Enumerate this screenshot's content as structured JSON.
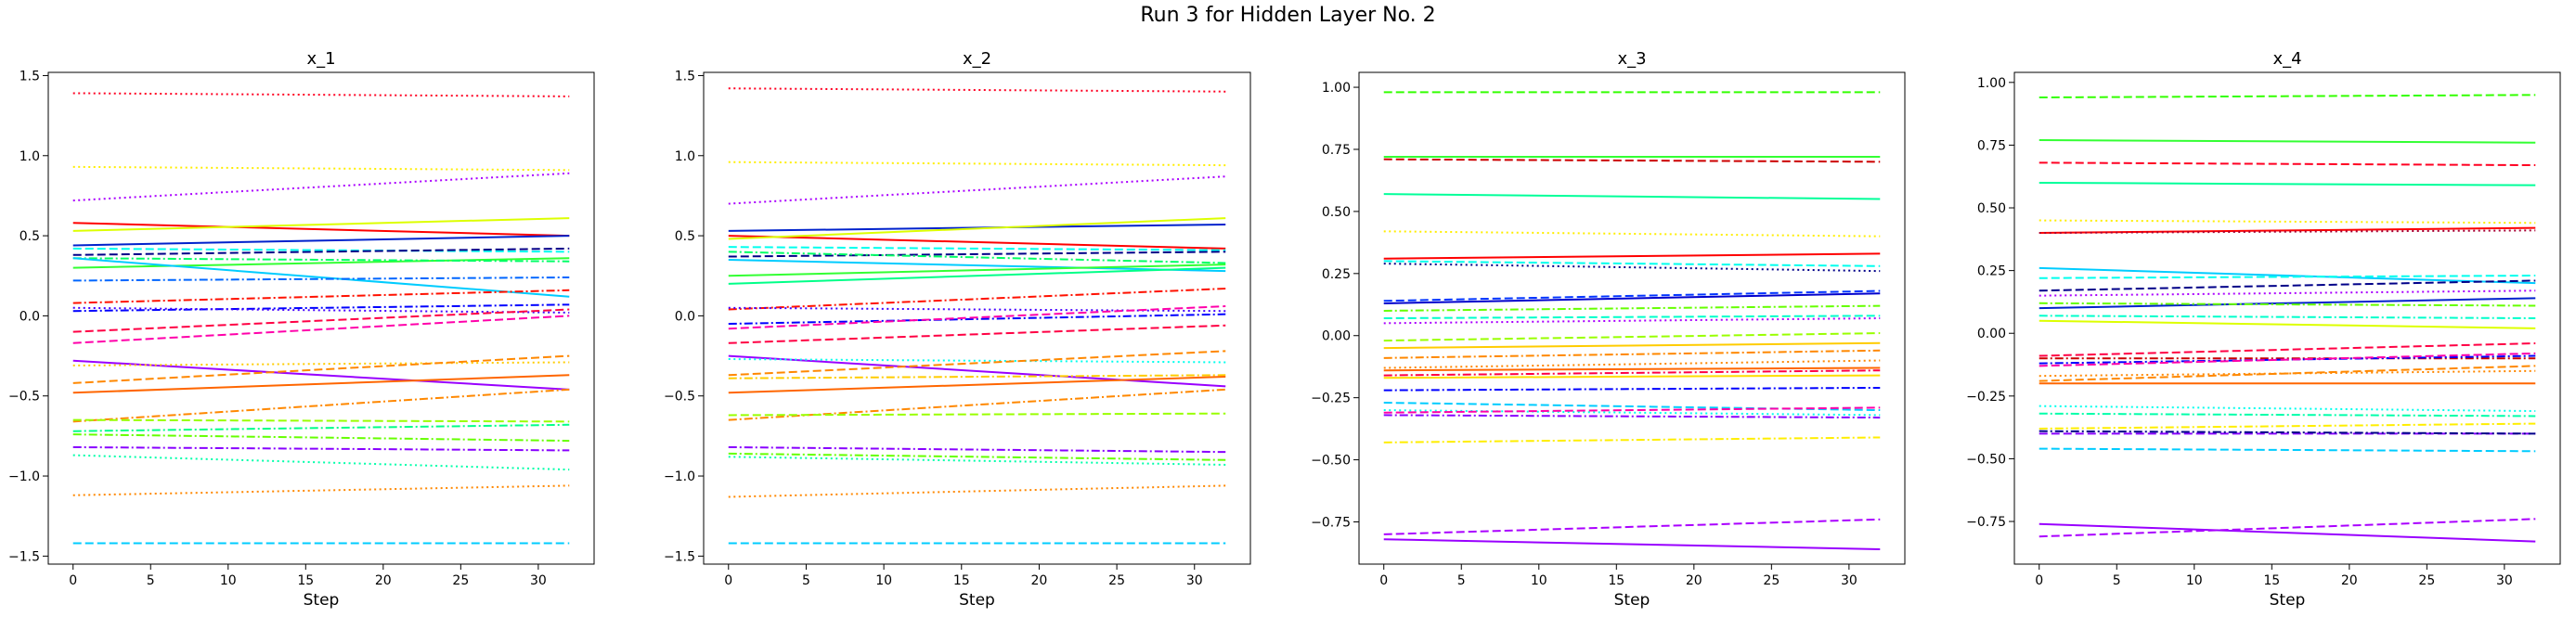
{
  "figure": {
    "title": "Run 3 for Hidden Layer No. 2"
  },
  "chart_data": [
    {
      "type": "line",
      "title": "x_1",
      "xlabel": "Step",
      "ylabel": "",
      "xlim": [
        -1.6,
        33.6
      ],
      "ylim": [
        -1.55,
        1.52
      ],
      "x_ticks": [
        0,
        5,
        10,
        15,
        20,
        25,
        30
      ],
      "y_ticks": [
        -1.5,
        -1.0,
        -0.5,
        0.0,
        0.5,
        1.0,
        1.5
      ],
      "y_tick_labels": [
        "−1.5",
        "−1.0",
        "−0.5",
        "0.0",
        "0.5",
        "1.0",
        "1.5"
      ],
      "x_range": [
        0,
        32
      ],
      "grid": false,
      "series": [
        {
          "color": "#ff0022",
          "style": "dotted",
          "start": 1.39,
          "end": 1.37
        },
        {
          "color": "#ffee00",
          "style": "dotted",
          "start": 0.93,
          "end": 0.91
        },
        {
          "color": "#aa00ff",
          "style": "dotted",
          "start": 0.72,
          "end": 0.89
        },
        {
          "color": "#ff0000",
          "style": "solid",
          "start": 0.58,
          "end": 0.5
        },
        {
          "color": "#ddff00",
          "style": "solid",
          "start": 0.53,
          "end": 0.61
        },
        {
          "color": "#0022cc",
          "style": "solid",
          "start": 0.44,
          "end": 0.5
        },
        {
          "color": "#00ffee",
          "style": "dashed",
          "start": 0.42,
          "end": 0.4
        },
        {
          "color": "#000088",
          "style": "dashed",
          "start": 0.38,
          "end": 0.42
        },
        {
          "color": "#33ff33",
          "style": "solid",
          "start": 0.3,
          "end": 0.36
        },
        {
          "color": "#00ff66",
          "style": "dashdot",
          "start": 0.36,
          "end": 0.34
        },
        {
          "color": "#00ccff",
          "style": "solid",
          "start": 0.36,
          "end": 0.12
        },
        {
          "color": "#0066ff",
          "style": "dashdot",
          "start": 0.22,
          "end": 0.24
        },
        {
          "color": "#ff1100",
          "style": "dashdot",
          "start": 0.08,
          "end": 0.16
        },
        {
          "color": "#0000ff",
          "style": "dashdot",
          "start": 0.03,
          "end": 0.07
        },
        {
          "color": "#4400ff",
          "style": "dotted",
          "start": 0.05,
          "end": 0.02
        },
        {
          "color": "#ff0044",
          "style": "dashed",
          "start": -0.1,
          "end": 0.04
        },
        {
          "color": "#ff00aa",
          "style": "dashed",
          "start": -0.17,
          "end": 0.0
        },
        {
          "color": "#9900ff",
          "style": "solid",
          "start": -0.28,
          "end": -0.46
        },
        {
          "color": "#ffcc00",
          "style": "dotted",
          "start": -0.31,
          "end": -0.29
        },
        {
          "color": "#ff8800",
          "style": "dashed",
          "start": -0.42,
          "end": -0.25
        },
        {
          "color": "#ff6600",
          "style": "solid",
          "start": -0.48,
          "end": -0.37
        },
        {
          "color": "#ff8800",
          "style": "dashdot",
          "start": -0.66,
          "end": -0.46
        },
        {
          "color": "#99ff00",
          "style": "dashed",
          "start": -0.65,
          "end": -0.66
        },
        {
          "color": "#00ff88",
          "style": "dashdot",
          "start": -0.72,
          "end": -0.68
        },
        {
          "color": "#66ff00",
          "style": "dashdot",
          "start": -0.74,
          "end": -0.78
        },
        {
          "color": "#8800ff",
          "style": "dashdot",
          "start": -0.82,
          "end": -0.84
        },
        {
          "color": "#00ffaa",
          "style": "dotted",
          "start": -0.87,
          "end": -0.96
        },
        {
          "color": "#ff8800",
          "style": "dotted",
          "start": -1.12,
          "end": -1.06
        },
        {
          "color": "#00ccff",
          "style": "dashed",
          "start": -1.42,
          "end": -1.42
        }
      ]
    },
    {
      "type": "line",
      "title": "x_2",
      "xlabel": "Step",
      "ylabel": "",
      "xlim": [
        -1.6,
        33.6
      ],
      "ylim": [
        -1.55,
        1.52
      ],
      "x_ticks": [
        0,
        5,
        10,
        15,
        20,
        25,
        30
      ],
      "y_ticks": [
        -1.5,
        -1.0,
        -0.5,
        0.0,
        0.5,
        1.0,
        1.5
      ],
      "y_tick_labels": [
        "−1.5",
        "−1.0",
        "−0.5",
        "0.0",
        "0.5",
        "1.0",
        "1.5"
      ],
      "x_range": [
        0,
        32
      ],
      "grid": false,
      "series": [
        {
          "color": "#ff0022",
          "style": "dotted",
          "start": 1.42,
          "end": 1.4
        },
        {
          "color": "#ffee00",
          "style": "dotted",
          "start": 0.96,
          "end": 0.94
        },
        {
          "color": "#aa00ff",
          "style": "dotted",
          "start": 0.7,
          "end": 0.87
        },
        {
          "color": "#0022cc",
          "style": "solid",
          "start": 0.53,
          "end": 0.57
        },
        {
          "color": "#ff0000",
          "style": "solid",
          "start": 0.5,
          "end": 0.42
        },
        {
          "color": "#ddff00",
          "style": "solid",
          "start": 0.48,
          "end": 0.61
        },
        {
          "color": "#00ffee",
          "style": "dashed",
          "start": 0.43,
          "end": 0.41
        },
        {
          "color": "#000088",
          "style": "dashed",
          "start": 0.37,
          "end": 0.4
        },
        {
          "color": "#00ff66",
          "style": "dashdot",
          "start": 0.4,
          "end": 0.33
        },
        {
          "color": "#00ccff",
          "style": "solid",
          "start": 0.35,
          "end": 0.28
        },
        {
          "color": "#33ff33",
          "style": "solid",
          "start": 0.25,
          "end": 0.32
        },
        {
          "color": "#00ff88",
          "style": "solid",
          "start": 0.2,
          "end": 0.3
        },
        {
          "color": "#ff1100",
          "style": "dashdot",
          "start": 0.04,
          "end": 0.17
        },
        {
          "color": "#4400ff",
          "style": "dotted",
          "start": 0.05,
          "end": 0.03
        },
        {
          "color": "#0000ff",
          "style": "dashdot",
          "start": -0.05,
          "end": 0.01
        },
        {
          "color": "#ff00aa",
          "style": "dashed",
          "start": -0.08,
          "end": 0.06
        },
        {
          "color": "#ff0044",
          "style": "dashed",
          "start": -0.17,
          "end": -0.06
        },
        {
          "color": "#9900ff",
          "style": "solid",
          "start": -0.25,
          "end": -0.44
        },
        {
          "color": "#00ffee",
          "style": "dotted",
          "start": -0.27,
          "end": -0.29
        },
        {
          "color": "#ff8800",
          "style": "dashed",
          "start": -0.37,
          "end": -0.22
        },
        {
          "color": "#ffcc00",
          "style": "dashdot",
          "start": -0.39,
          "end": -0.37
        },
        {
          "color": "#ff6600",
          "style": "solid",
          "start": -0.48,
          "end": -0.38
        },
        {
          "color": "#ff8800",
          "style": "dashdot",
          "start": -0.65,
          "end": -0.46
        },
        {
          "color": "#99ff00",
          "style": "dashed",
          "start": -0.62,
          "end": -0.61
        },
        {
          "color": "#8800ff",
          "style": "dashdot",
          "start": -0.82,
          "end": -0.85
        },
        {
          "color": "#66ff00",
          "style": "dashdot",
          "start": -0.86,
          "end": -0.9
        },
        {
          "color": "#00ffaa",
          "style": "dotted",
          "start": -0.88,
          "end": -0.93
        },
        {
          "color": "#ff8800",
          "style": "dotted",
          "start": -1.13,
          "end": -1.06
        },
        {
          "color": "#00ccff",
          "style": "dashed",
          "start": -1.42,
          "end": -1.42
        }
      ]
    },
    {
      "type": "line",
      "title": "x_3",
      "xlabel": "Step",
      "ylabel": "",
      "xlim": [
        -1.6,
        33.6
      ],
      "ylim": [
        -0.92,
        1.06
      ],
      "x_ticks": [
        0,
        5,
        10,
        15,
        20,
        25,
        30
      ],
      "y_ticks": [
        -0.75,
        -0.5,
        -0.25,
        0.0,
        0.25,
        0.5,
        0.75,
        1.0
      ],
      "y_tick_labels": [
        "−0.75",
        "−0.50",
        "−0.25",
        "0.00",
        "0.25",
        "0.50",
        "0.75",
        "1.00"
      ],
      "x_range": [
        0,
        32
      ],
      "grid": false,
      "series": [
        {
          "color": "#33ff00",
          "style": "dashed",
          "start": 0.98,
          "end": 0.98
        },
        {
          "color": "#33ff33",
          "style": "solid",
          "start": 0.72,
          "end": 0.72
        },
        {
          "color": "#cc0000",
          "style": "dashed",
          "start": 0.71,
          "end": 0.7
        },
        {
          "color": "#00ff99",
          "style": "solid",
          "start": 0.57,
          "end": 0.55
        },
        {
          "color": "#ffee00",
          "style": "dotted",
          "start": 0.42,
          "end": 0.4
        },
        {
          "color": "#ff0000",
          "style": "solid",
          "start": 0.31,
          "end": 0.33
        },
        {
          "color": "#00ffee",
          "style": "dashed",
          "start": 0.3,
          "end": 0.28
        },
        {
          "color": "#000088",
          "style": "dotted",
          "start": 0.29,
          "end": 0.26
        },
        {
          "color": "#0000cc",
          "style": "solid",
          "start": 0.13,
          "end": 0.17
        },
        {
          "color": "#0033ff",
          "style": "dashed",
          "start": 0.14,
          "end": 0.18
        },
        {
          "color": "#66ff00",
          "style": "dashdot",
          "start": 0.1,
          "end": 0.12
        },
        {
          "color": "#00ffcc",
          "style": "dashed",
          "start": 0.07,
          "end": 0.08
        },
        {
          "color": "#aa00ff",
          "style": "dotted",
          "start": 0.05,
          "end": 0.07
        },
        {
          "color": "#99ff00",
          "style": "dashed",
          "start": -0.02,
          "end": 0.01
        },
        {
          "color": "#ffcc00",
          "style": "solid",
          "start": -0.05,
          "end": -0.03
        },
        {
          "color": "#ff8800",
          "style": "dashdot",
          "start": -0.09,
          "end": -0.06
        },
        {
          "color": "#ff6600",
          "style": "solid",
          "start": -0.14,
          "end": -0.13
        },
        {
          "color": "#ff8800",
          "style": "dotted",
          "start": -0.13,
          "end": -0.1
        },
        {
          "color": "#ff0044",
          "style": "dashdot",
          "start": -0.16,
          "end": -0.14
        },
        {
          "color": "#ffdd00",
          "style": "solid",
          "start": -0.17,
          "end": -0.16
        },
        {
          "color": "#0000ff",
          "style": "dashdot",
          "start": -0.22,
          "end": -0.21
        },
        {
          "color": "#00ccff",
          "style": "dashed",
          "start": -0.27,
          "end": -0.3
        },
        {
          "color": "#00ffee",
          "style": "dotted",
          "start": -0.3,
          "end": -0.32
        },
        {
          "color": "#ff00aa",
          "style": "dashed",
          "start": -0.31,
          "end": -0.29
        },
        {
          "color": "#8800ff",
          "style": "dashdot",
          "start": -0.32,
          "end": -0.33
        },
        {
          "color": "#ffee00",
          "style": "dashdot",
          "start": -0.43,
          "end": -0.41
        },
        {
          "color": "#aa00ff",
          "style": "dashed",
          "start": -0.8,
          "end": -0.74
        },
        {
          "color": "#9900ff",
          "style": "solid",
          "start": -0.82,
          "end": -0.86
        }
      ]
    },
    {
      "type": "line",
      "title": "x_4",
      "xlabel": "Step",
      "ylabel": "",
      "xlim": [
        -1.6,
        33.6
      ],
      "ylim": [
        -0.92,
        1.04
      ],
      "x_ticks": [
        0,
        5,
        10,
        15,
        20,
        25,
        30
      ],
      "y_ticks": [
        -0.75,
        -0.5,
        -0.25,
        0.0,
        0.25,
        0.5,
        0.75,
        1.0
      ],
      "y_tick_labels": [
        "−0.75",
        "−0.50",
        "−0.25",
        "0.00",
        "0.25",
        "0.50",
        "0.75",
        "1.00"
      ],
      "x_range": [
        0,
        32
      ],
      "grid": false,
      "series": [
        {
          "color": "#33ff00",
          "style": "dashed",
          "start": 0.94,
          "end": 0.95
        },
        {
          "color": "#33ff33",
          "style": "solid",
          "start": 0.77,
          "end": 0.76
        },
        {
          "color": "#ff0022",
          "style": "dashed",
          "start": 0.68,
          "end": 0.67
        },
        {
          "color": "#00ff99",
          "style": "solid",
          "start": 0.6,
          "end": 0.59
        },
        {
          "color": "#ffee00",
          "style": "dotted",
          "start": 0.45,
          "end": 0.44
        },
        {
          "color": "#ff0000",
          "style": "solid",
          "start": 0.4,
          "end": 0.42
        },
        {
          "color": "#aa0033",
          "style": "dotted",
          "start": 0.4,
          "end": 0.41
        },
        {
          "color": "#00ccff",
          "style": "solid",
          "start": 0.26,
          "end": 0.2
        },
        {
          "color": "#00ffee",
          "style": "dashed",
          "start": 0.22,
          "end": 0.23
        },
        {
          "color": "#000088",
          "style": "dashed",
          "start": 0.17,
          "end": 0.21
        },
        {
          "color": "#aa00ff",
          "style": "dotted",
          "start": 0.15,
          "end": 0.17
        },
        {
          "color": "#0022cc",
          "style": "solid",
          "start": 0.1,
          "end": 0.14
        },
        {
          "color": "#66ff00",
          "style": "dashdot",
          "start": 0.12,
          "end": 0.11
        },
        {
          "color": "#00ffcc",
          "style": "dashdot",
          "start": 0.07,
          "end": 0.06
        },
        {
          "color": "#ddff00",
          "style": "solid",
          "start": 0.05,
          "end": 0.02
        },
        {
          "color": "#ff0044",
          "style": "dashed",
          "start": -0.09,
          "end": -0.04
        },
        {
          "color": "#cc0000",
          "style": "dashdot",
          "start": -0.1,
          "end": -0.1
        },
        {
          "color": "#0000ff",
          "style": "dashdot",
          "start": -0.12,
          "end": -0.09
        },
        {
          "color": "#ff00aa",
          "style": "dashed",
          "start": -0.13,
          "end": -0.08
        },
        {
          "color": "#ff8800",
          "style": "dotted",
          "start": -0.17,
          "end": -0.15
        },
        {
          "color": "#ff8800",
          "style": "dashed",
          "start": -0.19,
          "end": -0.13
        },
        {
          "color": "#ff6600",
          "style": "solid",
          "start": -0.2,
          "end": -0.2
        },
        {
          "color": "#00ffee",
          "style": "dotted",
          "start": -0.29,
          "end": -0.31
        },
        {
          "color": "#00ffaa",
          "style": "dashdot",
          "start": -0.32,
          "end": -0.33
        },
        {
          "color": "#ffee00",
          "style": "dashdot",
          "start": -0.38,
          "end": -0.36
        },
        {
          "color": "#8800ff",
          "style": "dashed",
          "start": -0.4,
          "end": -0.4
        },
        {
          "color": "#000088",
          "style": "dashdot",
          "start": -0.39,
          "end": -0.4
        },
        {
          "color": "#00ccff",
          "style": "dashed",
          "start": -0.46,
          "end": -0.47
        },
        {
          "color": "#9900ff",
          "style": "solid",
          "start": -0.76,
          "end": -0.83
        },
        {
          "color": "#aa00ff",
          "style": "dashed",
          "start": -0.81,
          "end": -0.74
        }
      ]
    }
  ]
}
